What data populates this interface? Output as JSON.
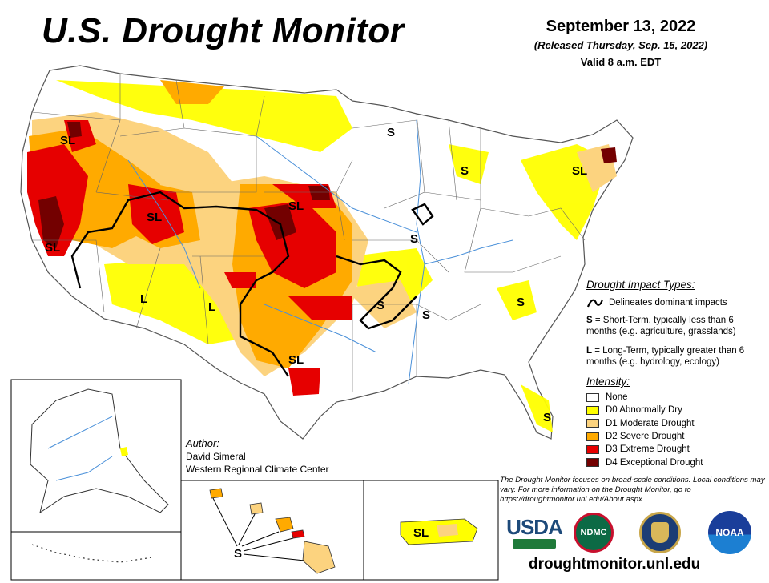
{
  "header": {
    "title": "U.S. Drought Monitor",
    "date": "September 13, 2022",
    "released": "(Released Thursday, Sep. 15, 2022)",
    "valid": "Valid 8 a.m. EDT"
  },
  "map_labels": {
    "sl": "SL",
    "s": "S",
    "l": "L"
  },
  "impact_types": {
    "heading": "Drought Impact Types:",
    "delineates": "Delineates dominant impacts",
    "short_term_key": "S",
    "short_term_text": " = Short-Term, typically less than 6 months (e.g. agriculture, grasslands)",
    "long_term_key": "L",
    "long_term_text": " = Long-Term, typically greater than 6 months (e.g. hydrology, ecology)"
  },
  "intensity": {
    "heading": "Intensity:",
    "categories": [
      {
        "label": "None",
        "color": "#ffffff"
      },
      {
        "label": "D0 Abnormally Dry",
        "color": "#ffff00"
      },
      {
        "label": "D1 Moderate Drought",
        "color": "#fcd37f"
      },
      {
        "label": "D2 Severe Drought",
        "color": "#ffaa00"
      },
      {
        "label": "D3 Extreme Drought",
        "color": "#e60000"
      },
      {
        "label": "D4 Exceptional Drought",
        "color": "#730000"
      }
    ]
  },
  "author": {
    "heading": "Author:",
    "name": "David Simeral",
    "affiliation": "Western Regional Climate Center"
  },
  "disclaimer": "The Drought Monitor focuses on broad-scale conditions. Local conditions may vary. For more information on the Drought Monitor, go to https://droughtmonitor.unl.edu/About.aspx",
  "footer_url": "droughtmonitor.unl.edu",
  "logos": {
    "usda": "USDA",
    "ndmc": "NDMC",
    "noaa": "NOAA"
  }
}
